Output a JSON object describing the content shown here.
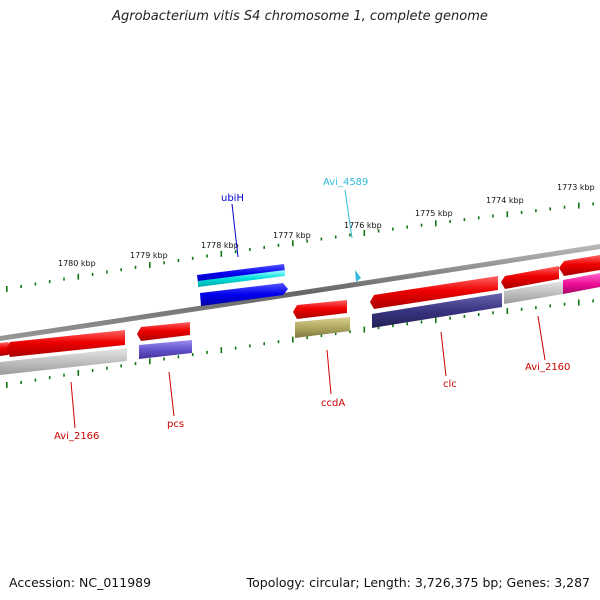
{
  "title": "Agrobacterium vitis S4 chromosome 1, complete genome",
  "footer": {
    "accession": "Accession: NC_011989",
    "topology": "Topology: circular; Length: 3,726,375 bp; Genes: 3,287"
  },
  "scale": {
    "labels": [
      "1780 kbp",
      "1779 kbp",
      "1778 kbp",
      "1777 kbp",
      "1776 kbp",
      "1775 kbp",
      "1774 kbp",
      "1773 kbp"
    ]
  },
  "genes": [
    {
      "name": "ubiH",
      "color": "#0000cc"
    },
    {
      "name": "Avi_4589",
      "color": "#33bbdd"
    },
    {
      "name": "Avi_2166",
      "color": "#cc0000"
    },
    {
      "name": "pcs",
      "color": "#cc0000"
    },
    {
      "name": "ccdA",
      "color": "#cc0000"
    },
    {
      "name": "clc",
      "color": "#cc0000"
    },
    {
      "name": "Avi_2160",
      "color": "#cc0000"
    }
  ],
  "colors": {
    "cds": "#ee0000",
    "outer_blue": "#0000ee",
    "outer_cyan": "#00dddd",
    "trna": "#6655cc",
    "olive": "#b0a860",
    "navy": "#3a3580",
    "grey_feature": "#c0c0c0",
    "magenta": "#ee1199",
    "backbone": "#777777",
    "ticks": "#117711"
  }
}
